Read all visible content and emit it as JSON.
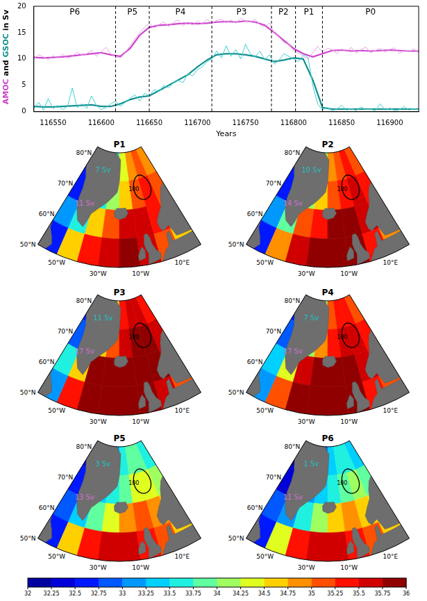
{
  "chart_data": {
    "type": "line",
    "xlabel": "Years",
    "ylabel": [
      {
        "text": "AMOC",
        "color": "#cc44cc"
      },
      {
        "text": " and ",
        "color": "#000000"
      },
      {
        "text": "GSOC",
        "color": "#138f8f"
      },
      {
        "text": " in Sv",
        "color": "#000000"
      }
    ],
    "xlim": [
      116530,
      116930
    ],
    "xticks": [
      116550,
      116600,
      116650,
      116700,
      116750,
      116800,
      116850,
      116900
    ],
    "ylim": [
      0,
      20
    ],
    "yticks": [
      0,
      5,
      10,
      15,
      20
    ],
    "grid": false,
    "phases": [
      {
        "label": "P6",
        "start": 116530,
        "end": 116615
      },
      {
        "label": "P5",
        "start": 116615,
        "end": 116650
      },
      {
        "label": "P4",
        "start": 116650,
        "end": 116715
      },
      {
        "label": "P3",
        "start": 116715,
        "end": 116777
      },
      {
        "label": "P2",
        "start": 116777,
        "end": 116802
      },
      {
        "label": "P1",
        "start": 116802,
        "end": 116830
      },
      {
        "label": "P0",
        "start": 116830,
        "end": 116930
      }
    ],
    "series": [
      {
        "color": "#e8a0e8",
        "line_style": "thin",
        "x": [
          116530,
          116535,
          116540,
          116545,
          116550,
          116555,
          116560,
          116565,
          116570,
          116575,
          116580,
          116585,
          116590,
          116595,
          116600,
          116605,
          116610,
          116615,
          116620,
          116625,
          116630,
          116635,
          116640,
          116645,
          116650,
          116655,
          116660,
          116665,
          116670,
          116675,
          116680,
          116685,
          116690,
          116695,
          116700,
          116705,
          116710,
          116715,
          116720,
          116725,
          116730,
          116735,
          116740,
          116745,
          116750,
          116755,
          116760,
          116765,
          116770,
          116775,
          116780,
          116785,
          116790,
          116795,
          116800,
          116805,
          116810,
          116815,
          116820,
          116825,
          116830,
          116835,
          116840,
          116845,
          116850,
          116855,
          116860,
          116865,
          116870,
          116875,
          116880,
          116885,
          116890,
          116895,
          116900,
          116905,
          116910,
          116915,
          116920,
          116925,
          116930
        ],
        "values": [
          10.0,
          10.8,
          10.4,
          9.9,
          10.6,
          10.2,
          10.9,
          10.1,
          10.5,
          11.3,
          10.7,
          11.0,
          11.6,
          10.5,
          11.4,
          12.2,
          11.0,
          10.4,
          10.2,
          11.2,
          12.5,
          13.8,
          14.9,
          16.0,
          16.8,
          15.9,
          16.5,
          17.0,
          16.2,
          16.9,
          17.4,
          16.3,
          17.0,
          16.4,
          17.2,
          16.6,
          17.5,
          16.8,
          17.3,
          17.6,
          16.9,
          17.4,
          16.8,
          17.7,
          17.2,
          17.0,
          17.5,
          16.5,
          16.1,
          16.8,
          14.9,
          14.2,
          13.1,
          12.8,
          11.6,
          11.2,
          10.5,
          10.0,
          11.2,
          12.4,
          11.3,
          12.0,
          11.8,
          11.0,
          11.9,
          11.4,
          12.2,
          11.1,
          11.7,
          12.3,
          11.2,
          11.6,
          12.0,
          11.3,
          11.8,
          12.1,
          11.0,
          11.7,
          11.4,
          11.9,
          11.2
        ]
      },
      {
        "color": "#40d0d0",
        "line_style": "thin",
        "x": [
          116530,
          116535,
          116540,
          116545,
          116550,
          116555,
          116560,
          116565,
          116570,
          116575,
          116580,
          116585,
          116590,
          116595,
          116600,
          116605,
          116610,
          116615,
          116620,
          116625,
          116630,
          116635,
          116640,
          116645,
          116650,
          116655,
          116660,
          116665,
          116670,
          116675,
          116680,
          116685,
          116690,
          116695,
          116700,
          116705,
          116710,
          116715,
          116720,
          116725,
          116730,
          116735,
          116740,
          116745,
          116750,
          116755,
          116760,
          116765,
          116770,
          116775,
          116780,
          116785,
          116790,
          116795,
          116800,
          116805,
          116810,
          116815,
          116820,
          116825,
          116830,
          116835,
          116840,
          116845,
          116850,
          116855,
          116860,
          116865,
          116870,
          116875,
          116880,
          116885,
          116890,
          116895,
          116900,
          116905,
          116910,
          116915,
          116920,
          116925,
          116930
        ],
        "values": [
          0.5,
          1.8,
          0.3,
          2.5,
          0.6,
          1.2,
          0.4,
          1.0,
          4.5,
          0.8,
          1.5,
          0.6,
          3.0,
          1.2,
          0.4,
          0.8,
          1.5,
          2.0,
          1.0,
          1.8,
          2.5,
          3.2,
          2.0,
          3.5,
          3.0,
          4.2,
          3.8,
          5.0,
          4.5,
          5.5,
          6.0,
          5.5,
          7.2,
          6.8,
          8.0,
          8.5,
          9.5,
          10.0,
          11.5,
          10.2,
          12.5,
          10.5,
          11.8,
          10.0,
          12.8,
          11.0,
          10.4,
          11.5,
          9.8,
          10.8,
          9.0,
          9.8,
          11.0,
          10.5,
          10.0,
          9.5,
          10.8,
          10.3,
          5.0,
          1.5,
          0.3,
          0.8,
          0.2,
          0.5,
          1.2,
          0.3,
          0.6,
          0.2,
          0.9,
          0.4,
          0.5,
          0.2,
          1.5,
          0.3,
          0.7,
          0.2,
          0.4,
          1.0,
          0.3,
          0.6,
          0.4
        ]
      },
      {
        "color": "#cc44cc",
        "line_style": "solid",
        "x": [
          116530,
          116540,
          116550,
          116560,
          116570,
          116580,
          116590,
          116600,
          116610,
          116620,
          116630,
          116640,
          116650,
          116660,
          116670,
          116680,
          116690,
          116700,
          116710,
          116720,
          116730,
          116740,
          116750,
          116760,
          116770,
          116780,
          116790,
          116800,
          116810,
          116820,
          116830,
          116840,
          116850,
          116860,
          116870,
          116880,
          116890,
          116900,
          116910,
          116920,
          116930
        ],
        "values": [
          10.3,
          10.2,
          10.3,
          10.4,
          10.6,
          10.8,
          11.0,
          11.2,
          10.8,
          10.5,
          12.0,
          14.5,
          16.0,
          16.4,
          16.5,
          16.7,
          16.8,
          16.7,
          16.8,
          17.0,
          17.1,
          17.0,
          17.2,
          17.0,
          16.4,
          15.0,
          13.5,
          12.0,
          11.0,
          10.4,
          11.0,
          11.6,
          11.7,
          11.5,
          11.6,
          11.5,
          11.6,
          11.7,
          11.6,
          11.5,
          11.5
        ]
      },
      {
        "color": "#138f8f",
        "line_style": "solid",
        "x": [
          116530,
          116540,
          116550,
          116560,
          116570,
          116580,
          116590,
          116600,
          116610,
          116620,
          116630,
          116640,
          116650,
          116660,
          116670,
          116680,
          116690,
          116700,
          116710,
          116720,
          116730,
          116740,
          116750,
          116760,
          116770,
          116780,
          116790,
          116800,
          116810,
          116820,
          116830,
          116840,
          116850,
          116860,
          116870,
          116880,
          116890,
          116900,
          116910,
          116920,
          116930
        ],
        "values": [
          1.0,
          0.9,
          0.9,
          1.0,
          1.1,
          1.2,
          1.3,
          1.0,
          1.0,
          1.5,
          2.3,
          2.8,
          3.0,
          4.0,
          5.0,
          6.0,
          7.0,
          8.5,
          9.8,
          10.8,
          11.0,
          11.0,
          10.8,
          10.5,
          10.0,
          9.5,
          9.8,
          10.2,
          10.0,
          6.0,
          0.8,
          0.5,
          0.5,
          0.5,
          0.5,
          0.5,
          0.5,
          0.5,
          0.5,
          0.5,
          0.5
        ]
      }
    ]
  },
  "maps": {
    "type": "map",
    "lat_range": [
      50,
      82
    ],
    "lon_range": [
      -62,
      22
    ],
    "lat_ticks": [
      {
        "value": 80,
        "label": "80°N"
      },
      {
        "value": 70,
        "label": "70°N"
      },
      {
        "value": 60,
        "label": "60°N"
      },
      {
        "value": 50,
        "label": "50°N"
      }
    ],
    "lon_ticks": [
      {
        "value": -50,
        "label": "50°W"
      },
      {
        "value": -30,
        "label": "30°W"
      },
      {
        "value": -10,
        "label": "10°W"
      },
      {
        "value": 10,
        "label": "10°E"
      }
    ],
    "gsoc_color": "#20c0c0",
    "amoc_color": "#d070d0",
    "contour_label": "100",
    "colorbar": {
      "range": [
        32,
        36
      ],
      "ticks": [
        32,
        32.25,
        32.5,
        32.75,
        33,
        33.25,
        33.5,
        33.75,
        34,
        34.25,
        34.5,
        34.75,
        35,
        35.25,
        35.5,
        35.75,
        36
      ]
    },
    "panels": [
      {
        "title": "P1",
        "gsoc": "7 Sv",
        "amoc": "11 Sv",
        "salinity": [
          [
            32.5,
            33,
            33,
            33.5,
            34.25,
            34.75,
            35,
            34.75
          ],
          [
            32.5,
            33,
            33.5,
            34,
            34.5,
            35,
            35.25,
            35
          ],
          [
            33,
            33.5,
            34.5,
            35,
            35.5,
            35.5,
            35.25,
            35
          ],
          [
            32.5,
            34.5,
            35.25,
            35.5,
            35.75,
            35.5,
            35,
            34.5
          ]
        ]
      },
      {
        "title": "P2",
        "gsoc": "10 Sv",
        "amoc": "14 Sv",
        "salinity": [
          [
            32.5,
            33.25,
            33.5,
            34,
            34.75,
            35,
            35.25,
            35
          ],
          [
            32.5,
            33.25,
            34,
            34.5,
            35,
            35.25,
            35.5,
            35.25
          ],
          [
            33,
            33.75,
            35,
            35.25,
            35.75,
            35.75,
            35.5,
            35.25
          ],
          [
            32.5,
            34.75,
            35.5,
            35.75,
            35.75,
            35.75,
            35.25,
            34.75
          ]
        ]
      },
      {
        "title": "P3",
        "gsoc": "11 Sv",
        "amoc": "17 Sv",
        "salinity": [
          [
            32.5,
            33.25,
            33.75,
            34.25,
            35.25,
            35.5,
            35.5,
            35.25
          ],
          [
            32.75,
            33.5,
            34.5,
            35,
            35.5,
            35.75,
            35.75,
            35.5
          ],
          [
            33.5,
            34.5,
            35.75,
            35.75,
            35.75,
            35.75,
            35.75,
            35.5
          ],
          [
            33,
            35.25,
            35.75,
            36,
            36,
            35.75,
            35.5,
            35
          ]
        ]
      },
      {
        "title": "P4",
        "gsoc": "7 Sv",
        "amoc": "17 Sv",
        "salinity": [
          [
            32.5,
            33,
            33.5,
            34,
            35,
            35.25,
            35.25,
            35
          ],
          [
            32.75,
            33.25,
            34,
            34.75,
            35.25,
            35.5,
            35.5,
            35.25
          ],
          [
            33.25,
            34.25,
            35.5,
            35.75,
            35.75,
            35.75,
            35.5,
            35.25
          ],
          [
            33,
            35,
            35.75,
            36,
            36,
            35.75,
            35.25,
            35
          ]
        ]
      },
      {
        "title": "P5",
        "gsoc": "3 Sv",
        "amoc": "13 Sv",
        "salinity": [
          [
            32.25,
            32.5,
            32.75,
            33,
            33.5,
            33.75,
            33.75,
            33.5
          ],
          [
            32.5,
            32.75,
            33.25,
            33.5,
            33.75,
            34.25,
            34.25,
            34
          ],
          [
            32.75,
            33.25,
            33.75,
            34.25,
            34.75,
            35,
            34.75,
            34.5
          ],
          [
            32.5,
            34.5,
            35.25,
            35.5,
            35.5,
            35.25,
            35,
            34.5
          ]
        ]
      },
      {
        "title": "P6",
        "gsoc": "1 Sv",
        "amoc": "11 Sv",
        "salinity": [
          [
            32,
            32.25,
            32.5,
            32.75,
            33.25,
            33.5,
            33.5,
            33.25
          ],
          [
            32.25,
            32.5,
            33,
            33.25,
            33.5,
            33.75,
            34,
            33.75
          ],
          [
            32.75,
            33,
            33.5,
            34,
            34.5,
            34.75,
            34.5,
            34.25
          ],
          [
            32.5,
            34.25,
            35.25,
            35.5,
            35.5,
            35.25,
            35,
            34.5
          ]
        ]
      }
    ]
  }
}
